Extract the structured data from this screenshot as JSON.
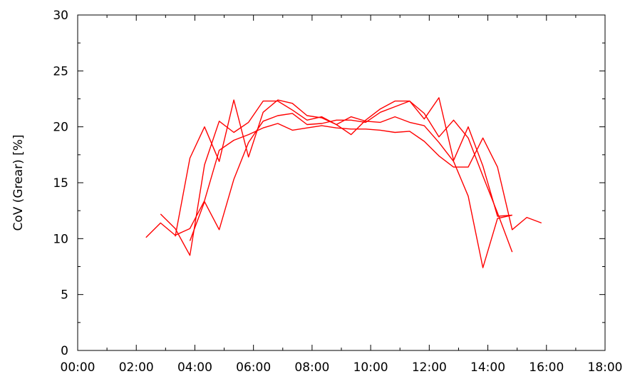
{
  "chart_data": {
    "type": "line",
    "title": "",
    "xlabel": "",
    "ylabel": "CoV (Grear) [%]",
    "xlim": [
      0,
      18
    ],
    "ylim": [
      0,
      30
    ],
    "x_ticks": [
      {
        "value": 0,
        "label": "00:00"
      },
      {
        "value": 2,
        "label": "02:00"
      },
      {
        "value": 4,
        "label": "04:00"
      },
      {
        "value": 6,
        "label": "06:00"
      },
      {
        "value": 8,
        "label": "08:00"
      },
      {
        "value": 10,
        "label": "10:00"
      },
      {
        "value": 12,
        "label": "12:00"
      },
      {
        "value": 14,
        "label": "14:00"
      },
      {
        "value": 16,
        "label": "16:00"
      },
      {
        "value": 18,
        "label": "18:00"
      }
    ],
    "y_ticks": [
      {
        "value": 0,
        "label": "0"
      },
      {
        "value": 5,
        "label": "5"
      },
      {
        "value": 10,
        "label": "10"
      },
      {
        "value": 15,
        "label": "15"
      },
      {
        "value": 20,
        "label": "20"
      },
      {
        "value": 25,
        "label": "25"
      },
      {
        "value": 30,
        "label": "30"
      }
    ],
    "x_minor_step": 1,
    "y_minor_step": 2.5,
    "grid": false,
    "line_color": "#ff0000",
    "series": [
      {
        "x": [
          2.33,
          2.83,
          3.33,
          3.83,
          4.33,
          4.83,
          5.33,
          5.83,
          6.33,
          6.83,
          7.33,
          7.83,
          8.33,
          8.83,
          9.33,
          9.83,
          10.33,
          10.83,
          11.33,
          11.83,
          12.33,
          12.83,
          13.33,
          13.83,
          14.33,
          14.83,
          15.33,
          15.83
        ],
        "y": [
          10.1,
          11.4,
          10.3,
          10.9,
          13.4,
          17.9,
          18.8,
          19.3,
          19.9,
          20.3,
          19.7,
          19.9,
          20.1,
          19.9,
          19.8,
          19.8,
          19.7,
          19.5,
          19.6,
          18.7,
          17.4,
          16.4,
          16.4,
          19.0,
          16.4,
          10.8,
          11.9,
          11.4
        ]
      },
      {
        "x": [
          2.83,
          3.33,
          3.83,
          4.33,
          4.83,
          5.33,
          5.83,
          6.33,
          6.83,
          7.33,
          7.83,
          8.33,
          8.83,
          9.33,
          9.83,
          10.33,
          10.83,
          11.33,
          11.83,
          12.33,
          12.83,
          13.33,
          13.83,
          14.33,
          14.83
        ],
        "y": [
          12.2,
          10.9,
          8.5,
          16.6,
          20.5,
          19.5,
          20.4,
          22.3,
          22.3,
          21.5,
          20.6,
          20.9,
          20.2,
          19.3,
          20.6,
          21.6,
          22.3,
          22.3,
          20.7,
          22.6,
          17.0,
          20.0,
          16.5,
          12.0,
          12.1
        ]
      },
      {
        "x": [
          3.33,
          3.83,
          4.33,
          4.83,
          5.33,
          5.83,
          6.33,
          6.83,
          7.33,
          7.83,
          8.33,
          8.83,
          9.33,
          9.83,
          10.33,
          10.83,
          11.33,
          11.83,
          12.33,
          12.83,
          13.33,
          13.83,
          14.33,
          14.83
        ],
        "y": [
          10.2,
          17.2,
          20.0,
          16.9,
          22.4,
          17.3,
          21.3,
          22.4,
          22.1,
          21.0,
          20.8,
          20.2,
          20.9,
          20.5,
          20.4,
          20.9,
          20.4,
          20.1,
          18.6,
          16.9,
          13.8,
          7.4,
          11.8,
          12.1
        ]
      },
      {
        "x": [
          3.83,
          4.33,
          4.83,
          5.33,
          5.83,
          6.33,
          6.83,
          7.33,
          7.83,
          8.33,
          8.83,
          9.33,
          9.83,
          10.33,
          10.83,
          11.33,
          11.83,
          12.33,
          12.83,
          13.33,
          13.83,
          14.33,
          14.83
        ],
        "y": [
          9.8,
          13.3,
          10.8,
          15.3,
          18.6,
          20.5,
          21.0,
          21.2,
          20.2,
          20.3,
          20.6,
          20.6,
          20.4,
          21.3,
          21.8,
          22.3,
          21.2,
          19.1,
          20.6,
          19.0,
          15.6,
          12.3,
          8.8
        ]
      }
    ]
  }
}
